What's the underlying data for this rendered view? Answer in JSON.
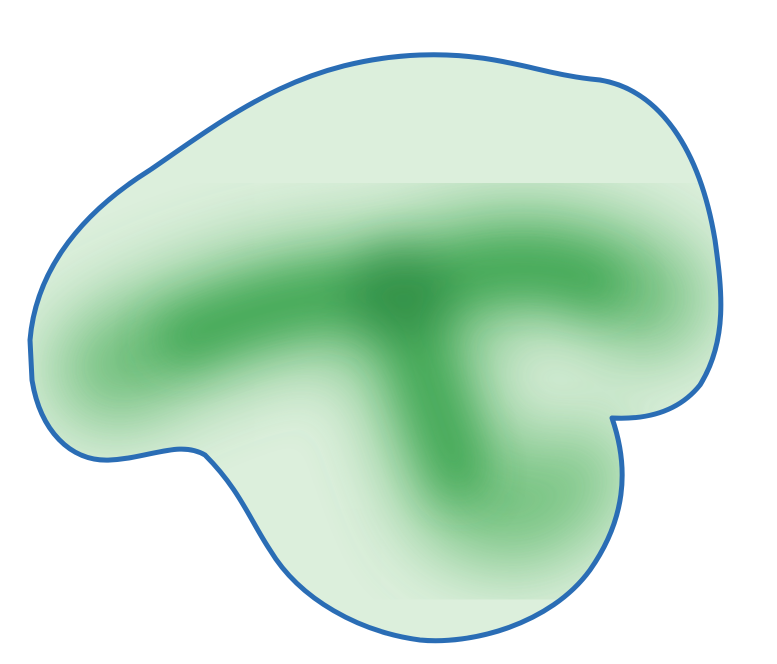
{
  "figure": {
    "background": "#ffffff",
    "outline_color": "#2a6db5",
    "fill_light": "#dcefdc",
    "fill_dark": "#2f9a47",
    "shape": "amoeba-region",
    "gradient": "radial-and-skeletal"
  }
}
